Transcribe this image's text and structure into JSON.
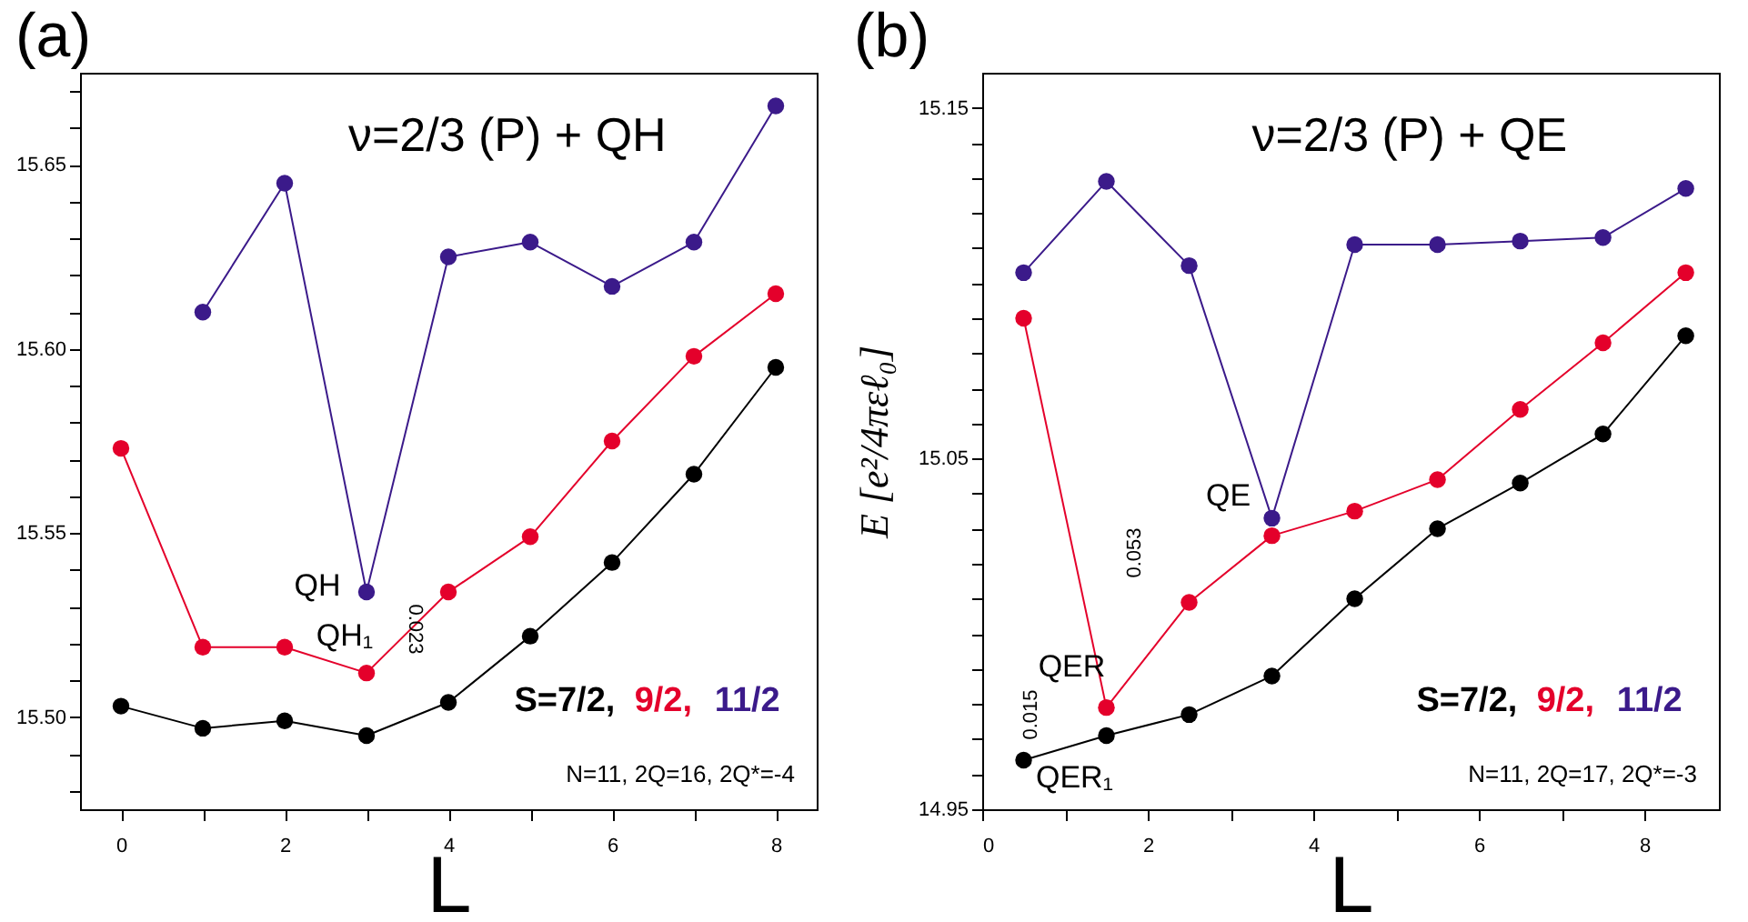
{
  "chart_data": [
    {
      "type": "line",
      "title": "(a)",
      "xlabel": "L",
      "legend": "bottom right",
      "marker": "circle",
      "grid": false,
      "x": [
        0,
        1,
        2,
        3,
        4,
        5,
        6,
        7,
        8
      ],
      "series": [
        {
          "name": "S=7/2,",
          "color": "#000000",
          "values": [
            15.503,
            15.497,
            15.499,
            15.495,
            15.504,
            15.522,
            15.542,
            15.566,
            15.595
          ]
        },
        {
          "name": "9/2,",
          "color": "#e4002b",
          "values": [
            15.573,
            15.519,
            15.519,
            15.512,
            15.534,
            15.549,
            15.575,
            15.598,
            15.615
          ]
        },
        {
          "name": "11/2",
          "color": "#3b1a8a",
          "values": [
            null,
            15.61,
            15.645,
            15.534,
            15.625,
            15.629,
            15.617,
            15.629,
            15.666
          ]
        }
      ],
      "xlim": [
        -0.5,
        8.5
      ],
      "ylim": [
        15.475,
        15.675
      ],
      "xticks": [
        0,
        {
          "value": 1,
          "label": null
        },
        2,
        {
          "value": 3,
          "label": null
        },
        4,
        {
          "value": 5,
          "label": null
        },
        6,
        {
          "value": 7,
          "label": null
        },
        8
      ],
      "yticks": [
        {
          "value": 15.48,
          "label": null
        },
        {
          "value": 15.49,
          "label": null
        },
        {
          "value": 15.5,
          "label": "15.50"
        },
        {
          "value": 15.51,
          "label": null
        },
        {
          "value": 15.52,
          "label": null
        },
        {
          "value": 15.53,
          "label": null
        },
        {
          "value": 15.54,
          "label": null
        },
        15.55,
        {
          "value": 15.56,
          "label": null
        },
        {
          "value": 15.57,
          "label": null
        },
        {
          "value": 15.58,
          "label": null
        },
        {
          "value": 15.59,
          "label": null
        },
        {
          "value": 15.6,
          "label": "15.60"
        },
        {
          "value": 15.61,
          "label": null
        },
        {
          "value": 15.62,
          "label": null
        },
        {
          "value": 15.63,
          "label": null
        },
        {
          "value": 15.64,
          "label": null
        },
        15.65,
        {
          "value": 15.66,
          "label": null
        },
        {
          "value": 15.67,
          "label": null
        }
      ],
      "annotations": [
        "ν=2/3 (P) + QH",
        "N=11, 2Q=16, 2Q*=-4",
        {
          "text": "QH",
          "x": 3,
          "y": 15.534
        },
        {
          "text": "QH₁",
          "x": 3,
          "y": 15.512
        },
        "0.023"
      ]
    },
    {
      "type": "line",
      "title": "(b)",
      "xlabel": "L",
      "ylabel": "E [e²/4πεℓ₀]",
      "legend": "bottom right",
      "marker": "circle",
      "grid": false,
      "x": [
        0.5,
        1.5,
        2.5,
        3.5,
        4.5,
        5.5,
        6.5,
        7.5,
        8.5
      ],
      "series": [
        {
          "name": "S=7/2,",
          "color": "#000000",
          "values": [
            14.964,
            14.971,
            14.977,
            14.988,
            15.01,
            15.03,
            15.043,
            15.057,
            15.085
          ]
        },
        {
          "name": "9/2,",
          "color": "#e4002b",
          "values": [
            15.09,
            14.979,
            15.009,
            15.028,
            15.035,
            15.044,
            15.064,
            15.083,
            15.103
          ]
        },
        {
          "name": "11/2",
          "color": "#3b1a8a",
          "values": [
            15.103,
            15.129,
            15.105,
            15.033,
            15.111,
            15.111,
            15.112,
            15.113,
            15.127
          ]
        }
      ],
      "xlim": [
        0,
        8.9
      ],
      "ylim": [
        14.95,
        15.16
      ],
      "xticks": [
        0,
        {
          "value": 1,
          "label": null
        },
        2,
        {
          "value": 3,
          "label": null
        },
        4,
        {
          "value": 5,
          "label": null
        },
        6,
        {
          "value": 7,
          "label": null
        },
        8
      ],
      "yticks": [
        14.95,
        {
          "value": 14.96,
          "label": null
        },
        {
          "value": 14.97,
          "label": null
        },
        {
          "value": 14.98,
          "label": null
        },
        {
          "value": 14.99,
          "label": null
        },
        {
          "value": 15.0,
          "label": null
        },
        {
          "value": 15.01,
          "label": null
        },
        {
          "value": 15.02,
          "label": null
        },
        {
          "value": 15.03,
          "label": null
        },
        {
          "value": 15.04,
          "label": null
        },
        15.05,
        {
          "value": 15.06,
          "label": null
        },
        {
          "value": 15.07,
          "label": null
        },
        {
          "value": 15.08,
          "label": null
        },
        {
          "value": 15.09,
          "label": null
        },
        {
          "value": 15.1,
          "label": null
        },
        {
          "value": 15.11,
          "label": null
        },
        {
          "value": 15.12,
          "label": null
        },
        {
          "value": 15.13,
          "label": null
        },
        {
          "value": 15.14,
          "label": null
        },
        15.15
      ],
      "annotations": [
        "ν=2/3 (P) + QE",
        "N=11, 2Q=17, 2Q*=-3",
        {
          "text": "QE",
          "x": 3.5,
          "y": 15.033
        },
        "0.053",
        {
          "text": "QER",
          "x": 1.5,
          "y": 14.979
        },
        "0.015",
        {
          "text": "QER₁",
          "x": 0.5,
          "y": 14.964
        }
      ]
    }
  ]
}
